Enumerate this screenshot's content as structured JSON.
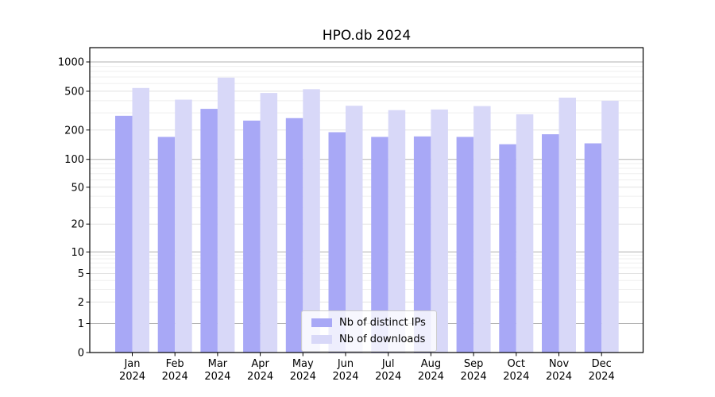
{
  "chart_data": {
    "type": "bar",
    "title": "HPO.db 2024",
    "categories": [
      "Jan 2024",
      "Feb 2024",
      "Mar 2024",
      "Apr 2024",
      "May 2024",
      "Jun 2024",
      "Jul 2024",
      "Aug 2024",
      "Sep 2024",
      "Oct 2024",
      "Nov 2024",
      "Dec 2024"
    ],
    "series": [
      {
        "name": "Nb of distinct IPs",
        "color": "#a8a8f6",
        "values": [
          280,
          170,
          330,
          250,
          265,
          190,
          170,
          172,
          170,
          143,
          181,
          146
        ]
      },
      {
        "name": "Nb of downloads",
        "color": "#d8d8f8",
        "values": [
          540,
          410,
          690,
          480,
          525,
          355,
          320,
          325,
          352,
          290,
          430,
          400
        ]
      }
    ],
    "y_ticks": [
      1000,
      500,
      200,
      100,
      50,
      20,
      10,
      5,
      2,
      1,
      0
    ],
    "y_scale": "symlog",
    "ylim": [
      0,
      1400
    ],
    "grid": true,
    "legend_position": "lower center",
    "colors": {
      "major_grid": "#b0b0b0",
      "sub_grid": "#e2e2e2",
      "minor_grid": "#efefef",
      "axis": "#000000"
    }
  }
}
